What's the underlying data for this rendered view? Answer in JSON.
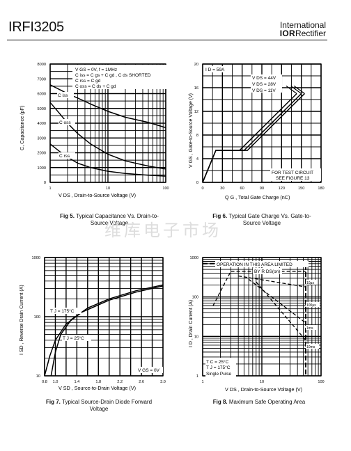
{
  "header": {
    "part_number": "IRFI3205",
    "brand_line1": "International",
    "brand_logo": "IOR",
    "brand_line2": "Rectifier"
  },
  "watermark": "维库电子市场",
  "figures": [
    {
      "caption_num": "Fig 5.",
      "caption_text": "Typical Capacitance Vs. Drain-to-Source Voltage",
      "chart_data": {
        "type": "line",
        "xlabel": "V DS , Drain-to-Source Voltage (V)",
        "ylabel": "C, Capacitance (pF)",
        "x_scale": "log",
        "xlim": [
          1,
          100
        ],
        "ylim": [
          0,
          8000
        ],
        "x_ticks": [
          "1",
          "10",
          "100"
        ],
        "y_ticks": [
          "0",
          "1000",
          "2000",
          "3000",
          "4000",
          "5000",
          "6000",
          "7000",
          "8000"
        ],
        "annotations": [
          "V GS = 0V, f = 1MHz",
          "C iss = C gs + C gd , C ds SHORTED",
          "C rss = C gd",
          "C oss = C ds + C gd"
        ],
        "series": [
          {
            "name": "C iss",
            "x": [
              1,
              1.5,
              2,
              3,
              5,
              10,
              20,
              50,
              100
            ],
            "y": [
              6600,
              6250,
              6000,
              5700,
              5300,
              4800,
              4400,
              4050,
              3700
            ]
          },
          {
            "name": "C oss",
            "x": [
              1,
              1.5,
              2,
              3,
              5,
              10,
              20,
              50,
              100
            ],
            "y": [
              5400,
              4600,
              4000,
              3300,
              2600,
              1900,
              1450,
              1100,
              900
            ]
          },
          {
            "name": "C rss",
            "x": [
              1,
              1.5,
              2,
              3,
              5,
              10,
              20,
              50,
              100
            ],
            "y": [
              2600,
              2050,
              1700,
              1300,
              1000,
              750,
              600,
              480,
              420
            ]
          }
        ]
      }
    },
    {
      "caption_num": "Fig 6.",
      "caption_text": "Typical Gate Charge Vs. Gate-to-Source Voltage",
      "chart_data": {
        "type": "line",
        "xlabel": "Q G , Total Gate Charge (nC)",
        "ylabel": "V GS , Gate-to-Source Voltage (V)",
        "xlim": [
          0,
          180
        ],
        "ylim": [
          0,
          20
        ],
        "x_ticks": [
          "0",
          "30",
          "60",
          "90",
          "120",
          "150",
          "180"
        ],
        "y_ticks": [
          "0",
          "4",
          "8",
          "12",
          "16",
          "20"
        ],
        "annotations": [
          "I D = 59A",
          "FOR TEST CIRCUIT",
          "SEE FIGURE 13"
        ],
        "series": [
          {
            "name": "V DS = 44V",
            "x": [
              0,
              20,
              68,
              155
            ],
            "y": [
              0,
              5.4,
              5.4,
              15
            ]
          },
          {
            "name": "V DS = 28V",
            "x": [
              0,
              20,
              63,
              150
            ],
            "y": [
              0,
              5.4,
              5.4,
              15
            ]
          },
          {
            "name": "V DS = 11V",
            "x": [
              0,
              20,
              56,
              143
            ],
            "y": [
              0,
              5.4,
              5.4,
              15
            ]
          }
        ]
      }
    },
    {
      "caption_num": "Fig 7.",
      "caption_text": "Typical Source-Drain Diode Forward Voltage",
      "chart_data": {
        "type": "line",
        "xlabel": "V SD , Source-to-Drain Voltage (V)",
        "ylabel": "I SD , Reverse Drain Current (A)",
        "y_scale": "log",
        "xlim": [
          0.8,
          3.0
        ],
        "ylim": [
          10,
          1000
        ],
        "x_ticks": [
          "0.8",
          "1.0",
          "1.2",
          "1.4",
          "1.6",
          "1.8",
          "2.0",
          "2.2",
          "2.4",
          "2.6",
          "2.8",
          "3.0"
        ],
        "x_tick_labels_shown": [
          "0.8",
          "1.0",
          "1.4",
          "1.8",
          "2.2",
          "2.6",
          "3.0"
        ],
        "y_ticks": [
          "10",
          "100",
          "1000"
        ],
        "annotations": [
          "V GS = 0V"
        ],
        "series": [
          {
            "name": "T J = 175°C",
            "x": [
              0.8,
              0.9,
              1.0,
              1.2,
              1.5,
              2.0,
              2.5,
              3.0
            ],
            "y": [
              10,
              22,
              40,
              75,
              120,
              190,
              260,
              330
            ]
          },
          {
            "name": "T J = 25°C",
            "x": [
              0.92,
              1.0,
              1.1,
              1.3,
              1.6,
              2.0,
              2.5,
              3.0
            ],
            "y": [
              10,
              25,
              50,
              90,
              140,
              200,
              275,
              345
            ]
          }
        ]
      }
    },
    {
      "caption_num": "Fig 8.",
      "caption_text": "Maximum Safe Operating Area",
      "chart_data": {
        "type": "line",
        "xlabel": "V DS , Drain-to-Source Voltage (V)",
        "ylabel": "I D , Drain Current (A)",
        "x_scale": "log",
        "y_scale": "log",
        "xlim": [
          1,
          100
        ],
        "ylim": [
          1,
          1000
        ],
        "x_ticks": [
          "1",
          "10",
          "100"
        ],
        "y_ticks": [
          "1",
          "10",
          "100",
          "1000"
        ],
        "annotations": [
          "OPERATION IN THIS AREA LIMITED",
          "BY R DS(on)",
          "T C = 25°C",
          "T J = 175°C",
          "Single Pulse"
        ],
        "series": [
          {
            "name": "10µs",
            "x": [
              3,
              55
            ],
            "y": [
              450,
              450
            ]
          },
          {
            "name": "100µs",
            "x": [
              4,
              55
            ],
            "y": [
              340,
              180
            ]
          },
          {
            "name": "1ms",
            "x": [
              6,
              55
            ],
            "y": [
              280,
              22
            ]
          },
          {
            "name": "10ms",
            "x": [
              8,
              55
            ],
            "y": [
              240,
              8
            ]
          }
        ]
      }
    }
  ]
}
